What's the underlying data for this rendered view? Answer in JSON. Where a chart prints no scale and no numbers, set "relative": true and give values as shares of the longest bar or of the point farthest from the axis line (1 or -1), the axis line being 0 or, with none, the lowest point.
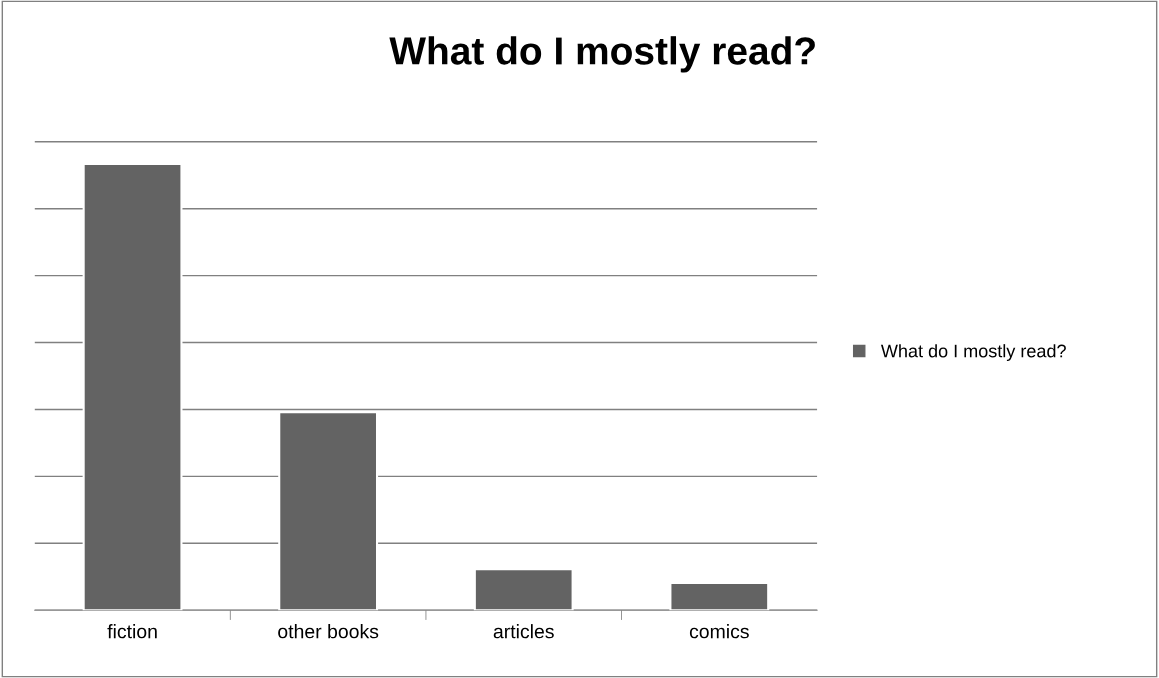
{
  "chart_data": {
    "type": "bar",
    "title": "What do I mostly read?",
    "categories": [
      "fiction",
      "other books",
      "articles",
      "comics"
    ],
    "series": [
      {
        "name": "What do I mostly read?",
        "color": "#636363",
        "values": [
          1,
          0.444,
          0.092,
          0.061
        ]
      }
    ],
    "relative": true,
    "grid": "y",
    "legend": "right"
  }
}
